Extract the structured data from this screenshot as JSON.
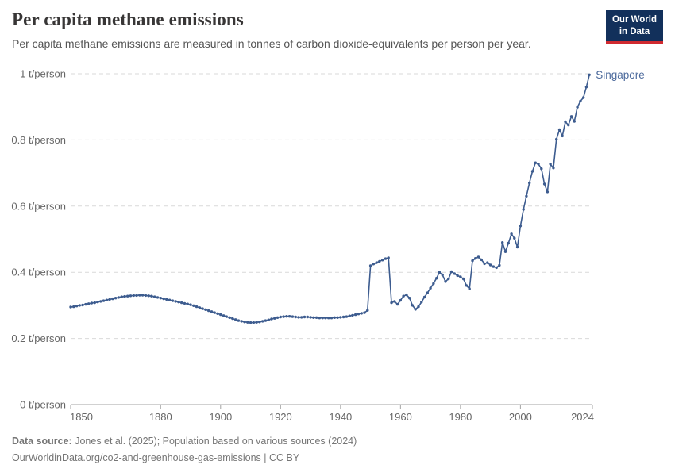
{
  "header": {
    "title": "Per capita methane emissions",
    "subtitle": "Per capita methane emissions are measured in tonnes of carbon dioxide-equivalents per person per year.",
    "logo": {
      "line1": "Our World",
      "line2": "in Data"
    }
  },
  "footer": {
    "source_label": "Data source:",
    "source_text": " Jones et al. (2025); Population based on various sources (2024)",
    "license_text": "OurWorldinData.org/co2-and-greenhouse-gas-emissions | CC BY"
  },
  "colors": {
    "line": "#3d5c8f",
    "entity_label": "#4c6a9c",
    "grid": "#d9d9d9",
    "axis": "#a3a3a3",
    "tick_text": "#666666",
    "title_text": "#383636",
    "subtitle_text": "#555555",
    "footer_text": "#767676",
    "logo_bg": "#12305b",
    "logo_stripe": "#d02a30"
  },
  "chart_data": {
    "type": "line",
    "title": "Per capita methane emissions",
    "unit": "t/person",
    "start_year": 1850,
    "end_year": 2023,
    "xlim": [
      1850,
      2024
    ],
    "ylim": [
      0,
      1
    ],
    "x_ticks": [
      1850,
      1880,
      1900,
      1920,
      1940,
      1960,
      1980,
      2000,
      2024
    ],
    "y_ticks": [
      {
        "value": 0,
        "label": "0 t/person"
      },
      {
        "value": 0.2,
        "label": "0.2 t/person"
      },
      {
        "value": 0.4,
        "label": "0.4 t/person"
      },
      {
        "value": 0.6,
        "label": "0.6 t/person"
      },
      {
        "value": 0.8,
        "label": "0.8 t/person"
      },
      {
        "value": 1,
        "label": "1 t/person"
      }
    ],
    "grid": "horizontal-dashed",
    "legend": "line-end-label",
    "markers": true,
    "series": [
      {
        "name": "Singapore",
        "color": "#3d5c8f",
        "label_color": "#4c6a9c",
        "values": [
          0.295,
          0.296,
          0.298,
          0.3,
          0.301,
          0.303,
          0.305,
          0.307,
          0.308,
          0.31,
          0.312,
          0.314,
          0.316,
          0.318,
          0.32,
          0.322,
          0.324,
          0.326,
          0.327,
          0.328,
          0.329,
          0.33,
          0.33,
          0.331,
          0.331,
          0.33,
          0.329,
          0.328,
          0.326,
          0.324,
          0.322,
          0.32,
          0.318,
          0.316,
          0.314,
          0.312,
          0.31,
          0.308,
          0.306,
          0.304,
          0.302,
          0.299,
          0.296,
          0.293,
          0.29,
          0.287,
          0.284,
          0.281,
          0.278,
          0.275,
          0.272,
          0.269,
          0.266,
          0.263,
          0.26,
          0.257,
          0.254,
          0.252,
          0.25,
          0.249,
          0.248,
          0.248,
          0.249,
          0.25,
          0.252,
          0.254,
          0.256,
          0.259,
          0.261,
          0.263,
          0.265,
          0.266,
          0.267,
          0.267,
          0.266,
          0.265,
          0.264,
          0.264,
          0.265,
          0.265,
          0.264,
          0.263,
          0.263,
          0.262,
          0.262,
          0.262,
          0.262,
          0.262,
          0.263,
          0.263,
          0.264,
          0.265,
          0.266,
          0.268,
          0.27,
          0.272,
          0.274,
          0.276,
          0.278,
          0.285,
          0.42,
          0.425,
          0.429,
          0.433,
          0.437,
          0.441,
          0.444,
          0.308,
          0.312,
          0.303,
          0.315,
          0.328,
          0.332,
          0.322,
          0.3,
          0.288,
          0.296,
          0.31,
          0.325,
          0.338,
          0.352,
          0.366,
          0.382,
          0.4,
          0.392,
          0.372,
          0.38,
          0.402,
          0.396,
          0.39,
          0.386,
          0.38,
          0.36,
          0.35,
          0.435,
          0.442,
          0.446,
          0.438,
          0.426,
          0.429,
          0.422,
          0.417,
          0.414,
          0.421,
          0.49,
          0.462,
          0.488,
          0.516,
          0.503,
          0.476,
          0.54,
          0.59,
          0.63,
          0.67,
          0.705,
          0.731,
          0.727,
          0.713,
          0.667,
          0.643,
          0.727,
          0.715,
          0.802,
          0.831,
          0.812,
          0.855,
          0.845,
          0.871,
          0.856,
          0.899,
          0.917,
          0.928,
          0.96,
          0.997
        ]
      }
    ]
  }
}
